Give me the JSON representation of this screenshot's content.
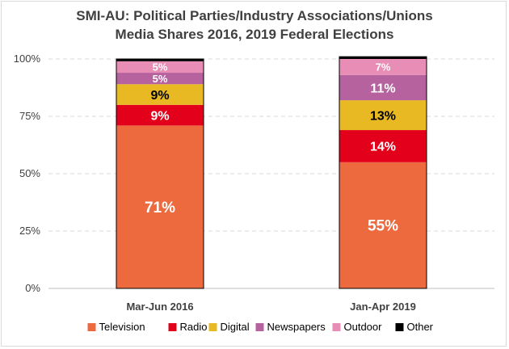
{
  "chart_data": {
    "type": "bar",
    "stacked": true,
    "title": "SMI-AU: Political Parties/Industry Associations/Unions",
    "subtitle": "Media Shares 2016, 2019 Federal Elections",
    "categories": [
      "Mar-Jun 2016",
      "Jan-Apr 2019"
    ],
    "ylim": [
      0,
      100
    ],
    "yticks": [
      "0%",
      "25%",
      "50%",
      "75%",
      "100%"
    ],
    "grid": true,
    "legend_position": "bottom",
    "series": [
      {
        "name": "Television",
        "color": "#ed6a3f",
        "values": [
          71,
          55
        ],
        "labels": [
          "71%",
          "55%"
        ]
      },
      {
        "name": "Radio",
        "color": "#e3001b",
        "values": [
          9,
          14
        ],
        "labels": [
          "9%",
          "14%"
        ]
      },
      {
        "name": "Digital",
        "color": "#e8b923",
        "values": [
          9,
          13
        ],
        "labels": [
          "9%",
          "13%"
        ]
      },
      {
        "name": "Newspapers",
        "color": "#b5629e",
        "values": [
          5,
          11
        ],
        "labels": [
          "5%",
          "11%"
        ]
      },
      {
        "name": "Outdoor",
        "color": "#e88db5",
        "values": [
          5,
          7
        ],
        "labels": [
          "5%",
          "7%"
        ]
      },
      {
        "name": "Other",
        "color": "#000000",
        "values": [
          1,
          1
        ],
        "labels": [
          "",
          ""
        ]
      }
    ]
  }
}
